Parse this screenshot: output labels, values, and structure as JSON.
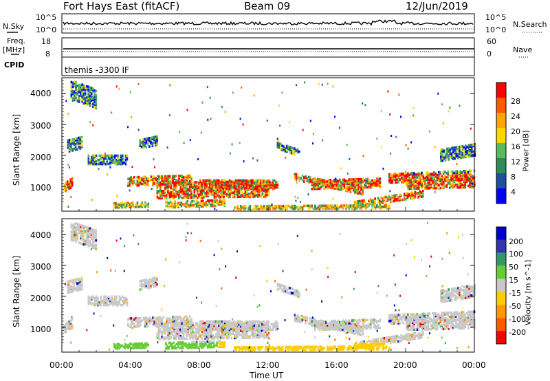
{
  "header": {
    "radar": "Fort Hays East (fitACF)",
    "beam": "Beam 09",
    "date": "12/Jun/2019"
  },
  "strips": {
    "nsky_label": "N.Sky",
    "nsearch_label": "N.Search",
    "noise_ticks": [
      "10^5",
      "10^0"
    ],
    "freq_label_1": "Freq.",
    "freq_label_2": "[MHz]",
    "freq_ticks": [
      "18",
      "8"
    ],
    "nave_label": "Nave",
    "nave_ticks": [
      "60",
      "0"
    ],
    "cpid_label": "CPID",
    "cpid_value": "themis -3300 IF"
  },
  "colors": {
    "power": [
      "#0000ff",
      "#1f4fa0",
      "#2e8b57",
      "#5cb85c",
      "#ffd700",
      "#ffa500",
      "#ff5a00",
      "#ff0000"
    ],
    "velocity": [
      "#ff0000",
      "#ff5a00",
      "#ff9900",
      "#ffcc00",
      "#c8c8c8",
      "#66cc33",
      "#339966",
      "#3333aa",
      "#0000cc"
    ]
  },
  "chart_data": [
    {
      "type": "heatmap",
      "parameter": "power",
      "ylabel": "Slant Range [km]",
      "ylim": [
        200,
        4500
      ],
      "yticks": [
        "4000",
        "3000",
        "2000",
        "1000"
      ],
      "xlim": [
        "00:00",
        "24:00"
      ],
      "colorbar_label": "Power [dB]",
      "colorbar_ticks": [
        "28",
        "24",
        "20",
        "16",
        "12",
        "8",
        "4"
      ]
    },
    {
      "type": "heatmap",
      "parameter": "velocity",
      "ylabel": "Slant Range [km]",
      "xlabel": "Time UT",
      "ylim": [
        200,
        4500
      ],
      "yticks": [
        "4000",
        "3000",
        "2000",
        "1000"
      ],
      "xticks": [
        "00:00",
        "04:00",
        "08:00",
        "12:00",
        "16:00",
        "20:00",
        "00:00"
      ],
      "xlim": [
        "00:00",
        "24:00"
      ],
      "colorbar_label": "Velocity [m s^-1]",
      "colorbar_ticks": [
        "200",
        "100",
        "50",
        "15",
        "-15",
        "-50",
        "-100",
        "-200"
      ]
    }
  ]
}
